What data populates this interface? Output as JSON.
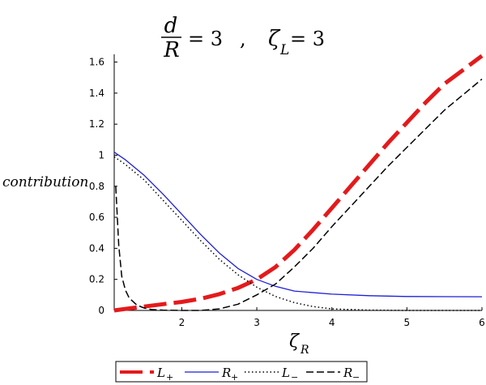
{
  "chart_data": {
    "type": "line",
    "title": {
      "frac_num": "d",
      "frac_den": "R",
      "eq1": "= 3",
      "sep": ",",
      "zeta_sym": "ζ",
      "zeta_sub": "L",
      "eq2": "= 3"
    },
    "xlabel": {
      "symbol": "ζ",
      "sub": "R"
    },
    "ylabel": "contribution",
    "xlim": [
      1.1,
      6
    ],
    "ylim": [
      0,
      1.65
    ],
    "xticks": [
      2,
      3,
      4,
      5,
      6
    ],
    "yticks": [
      0,
      0.2,
      0.4,
      0.6,
      0.8,
      1,
      1.2,
      1.4,
      1.6
    ],
    "grid": false,
    "legend_position": "bottom",
    "series": [
      {
        "name": "L+",
        "label_main": "L",
        "label_sub": "+",
        "color": "#e41a1c",
        "style": "long-dash-thick",
        "x": [
          1.1,
          1.25,
          1.5,
          1.75,
          2.0,
          2.25,
          2.5,
          2.75,
          3.0,
          3.25,
          3.5,
          3.75,
          4.0,
          4.25,
          4.5,
          4.75,
          5.0,
          5.25,
          5.5,
          5.75,
          6.0
        ],
        "y": [
          0.0,
          0.01,
          0.025,
          0.04,
          0.055,
          0.075,
          0.105,
          0.145,
          0.2,
          0.28,
          0.39,
          0.52,
          0.66,
          0.8,
          0.94,
          1.08,
          1.21,
          1.34,
          1.46,
          1.55,
          1.64
        ]
      },
      {
        "name": "R+",
        "label_main": "R",
        "label_sub": "+",
        "color": "#1f1fd6",
        "style": "solid",
        "x": [
          1.1,
          1.25,
          1.5,
          1.75,
          2.0,
          2.25,
          2.5,
          2.75,
          3.0,
          3.25,
          3.5,
          4.0,
          4.5,
          5.0,
          5.5,
          6.0
        ],
        "y": [
          1.02,
          0.97,
          0.87,
          0.75,
          0.62,
          0.49,
          0.37,
          0.27,
          0.2,
          0.155,
          0.125,
          0.105,
          0.095,
          0.09,
          0.089,
          0.088
        ]
      },
      {
        "name": "L-",
        "label_main": "L",
        "label_sub": "−",
        "color": "#000000",
        "style": "dotted",
        "x": [
          1.1,
          1.25,
          1.5,
          1.75,
          2.0,
          2.25,
          2.5,
          2.75,
          3.0,
          3.25,
          3.5,
          3.75,
          4.0,
          4.5,
          5.0,
          5.5,
          6.0
        ],
        "y": [
          0.99,
          0.94,
          0.84,
          0.71,
          0.58,
          0.45,
          0.33,
          0.23,
          0.15,
          0.09,
          0.05,
          0.025,
          0.01,
          0.002,
          0.0,
          0.0,
          0.0
        ]
      },
      {
        "name": "R-",
        "label_main": "R",
        "label_sub": "−",
        "color": "#000000",
        "style": "dashed",
        "x": [
          1.12,
          1.16,
          1.2,
          1.25,
          1.3,
          1.4,
          1.5,
          1.6,
          1.75,
          2.0,
          2.25,
          2.5,
          2.75,
          3.0,
          3.25,
          3.5,
          3.75,
          4.0,
          4.25,
          4.5,
          4.75,
          5.0,
          5.25,
          5.5,
          5.75,
          6.0
        ],
        "y": [
          0.8,
          0.42,
          0.22,
          0.13,
          0.08,
          0.035,
          0.015,
          0.006,
          0.002,
          0.0,
          0.0,
          0.01,
          0.04,
          0.1,
          0.17,
          0.28,
          0.4,
          0.54,
          0.67,
          0.8,
          0.93,
          1.05,
          1.17,
          1.29,
          1.39,
          1.49
        ]
      }
    ]
  }
}
